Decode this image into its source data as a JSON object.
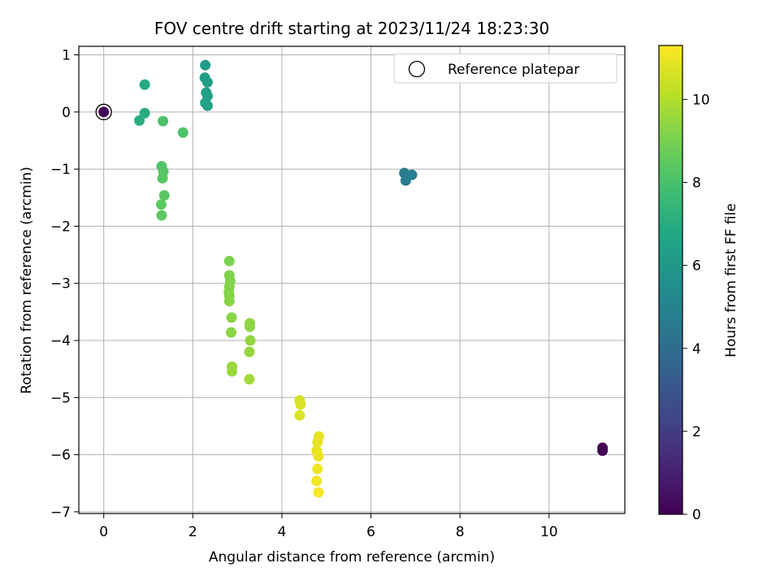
{
  "chart_data": {
    "type": "scatter",
    "title": "FOV centre drift starting at 2023/11/24 18:23:30",
    "xlabel": "Angular distance from reference (arcmin)",
    "ylabel": "Rotation from reference (arcmin)",
    "xlim": [
      -0.56,
      11.7
    ],
    "ylim": [
      -7.03,
      1.15
    ],
    "xticks": [
      0,
      2,
      4,
      6,
      8,
      10
    ],
    "yticks": [
      1,
      0,
      -1,
      -2,
      -3,
      -4,
      -5,
      -6,
      -7
    ],
    "grid": true,
    "legend": {
      "position": "top-right",
      "entries": [
        "Reference platepar"
      ]
    },
    "reference": {
      "x": 0,
      "y": 0
    },
    "colorbar": {
      "label": "Hours from first FF file",
      "colormap": "viridis",
      "range": [
        0,
        11.3
      ],
      "ticks": [
        0,
        2,
        4,
        6,
        8,
        10
      ]
    },
    "points": [
      {
        "x": 0.0,
        "y": 0.0,
        "t": 0.0
      },
      {
        "x": 11.2,
        "y": -5.88,
        "t": 0.0
      },
      {
        "x": 11.2,
        "y": -5.93,
        "t": 0.05
      },
      {
        "x": 6.75,
        "y": -1.07,
        "t": 4.7
      },
      {
        "x": 6.92,
        "y": -1.1,
        "t": 4.75
      },
      {
        "x": 6.78,
        "y": -1.2,
        "t": 4.8
      },
      {
        "x": 2.28,
        "y": 0.82,
        "t": 6.2
      },
      {
        "x": 2.27,
        "y": 0.6,
        "t": 6.25
      },
      {
        "x": 2.33,
        "y": 0.52,
        "t": 6.3
      },
      {
        "x": 2.3,
        "y": 0.34,
        "t": 6.35
      },
      {
        "x": 2.33,
        "y": 0.28,
        "t": 6.4
      },
      {
        "x": 2.28,
        "y": 0.16,
        "t": 6.45
      },
      {
        "x": 2.33,
        "y": 0.11,
        "t": 6.5
      },
      {
        "x": 0.92,
        "y": 0.48,
        "t": 6.9
      },
      {
        "x": 0.92,
        "y": -0.02,
        "t": 7.0
      },
      {
        "x": 0.8,
        "y": -0.15,
        "t": 7.05
      },
      {
        "x": 1.33,
        "y": -0.16,
        "t": 8.05
      },
      {
        "x": 1.78,
        "y": -0.36,
        "t": 8.15
      },
      {
        "x": 1.3,
        "y": -0.95,
        "t": 8.2
      },
      {
        "x": 1.34,
        "y": -1.04,
        "t": 8.3
      },
      {
        "x": 1.32,
        "y": -1.16,
        "t": 8.35
      },
      {
        "x": 1.36,
        "y": -1.46,
        "t": 8.4
      },
      {
        "x": 1.29,
        "y": -1.62,
        "t": 8.45
      },
      {
        "x": 1.3,
        "y": -1.81,
        "t": 8.5
      },
      {
        "x": 2.82,
        "y": -2.61,
        "t": 9.1
      },
      {
        "x": 2.82,
        "y": -2.86,
        "t": 9.15
      },
      {
        "x": 2.84,
        "y": -2.96,
        "t": 9.15
      },
      {
        "x": 2.82,
        "y": -3.06,
        "t": 9.2
      },
      {
        "x": 2.81,
        "y": -3.16,
        "t": 9.2
      },
      {
        "x": 2.82,
        "y": -3.22,
        "t": 9.25
      },
      {
        "x": 2.82,
        "y": -3.31,
        "t": 9.25
      },
      {
        "x": 2.87,
        "y": -3.6,
        "t": 9.3
      },
      {
        "x": 2.86,
        "y": -3.86,
        "t": 9.35
      },
      {
        "x": 3.28,
        "y": -3.7,
        "t": 9.4
      },
      {
        "x": 3.28,
        "y": -3.76,
        "t": 9.4
      },
      {
        "x": 3.29,
        "y": -4.0,
        "t": 9.45
      },
      {
        "x": 3.27,
        "y": -4.2,
        "t": 9.5
      },
      {
        "x": 2.88,
        "y": -4.46,
        "t": 9.55
      },
      {
        "x": 2.88,
        "y": -4.54,
        "t": 9.6
      },
      {
        "x": 3.27,
        "y": -4.68,
        "t": 9.7
      },
      {
        "x": 4.4,
        "y": -5.05,
        "t": 10.6
      },
      {
        "x": 4.42,
        "y": -5.12,
        "t": 10.65
      },
      {
        "x": 4.4,
        "y": -5.31,
        "t": 10.7
      },
      {
        "x": 4.83,
        "y": -5.68,
        "t": 10.85
      },
      {
        "x": 4.8,
        "y": -5.78,
        "t": 10.9
      },
      {
        "x": 4.78,
        "y": -5.93,
        "t": 10.95
      },
      {
        "x": 4.82,
        "y": -6.03,
        "t": 11.0
      },
      {
        "x": 4.8,
        "y": -6.25,
        "t": 11.05
      },
      {
        "x": 4.78,
        "y": -6.46,
        "t": 11.1
      },
      {
        "x": 4.82,
        "y": -6.66,
        "t": 11.2
      }
    ]
  }
}
